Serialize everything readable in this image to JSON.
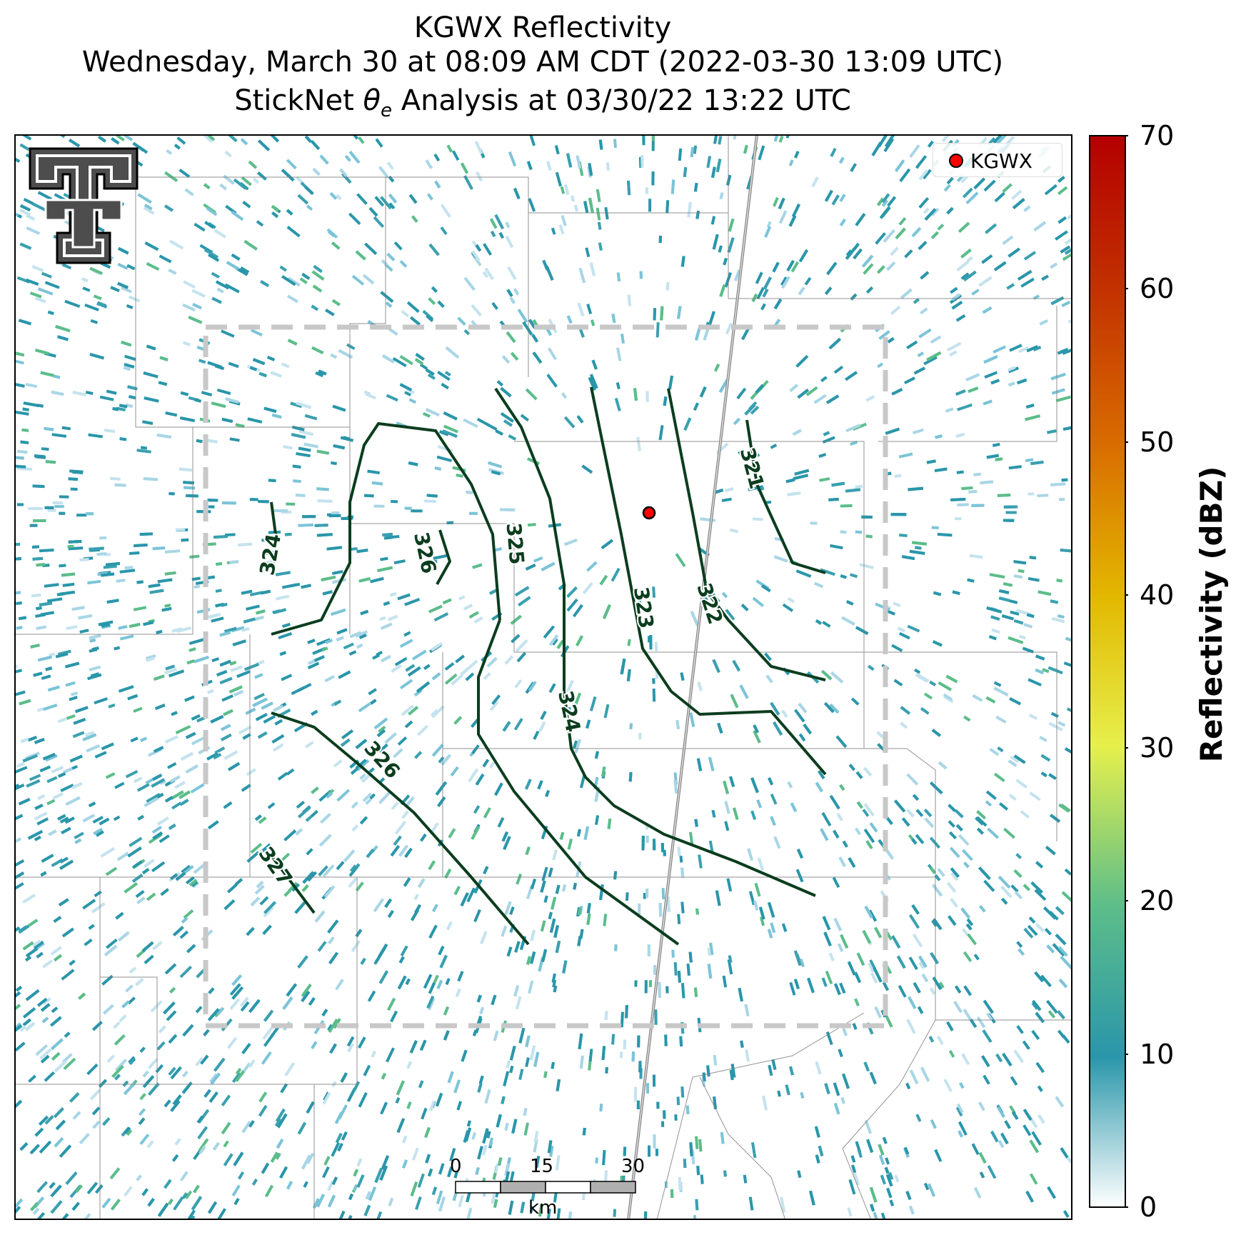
{
  "title": {
    "line1": "KGWX Reflectivity",
    "line2": "Wednesday, March 30 at 08:09 AM CDT (2022-03-30 13:09 UTC)",
    "line3_prefix": "StickNet ",
    "line3_symbol": "θ",
    "line3_subscript": "e",
    "line3_suffix": " Analysis at 03/30/22 13:22 UTC"
  },
  "legend": {
    "label": "KGWX",
    "marker_color": "#ff0000"
  },
  "colorbar": {
    "label": "Reflectivity (dBZ)",
    "ticks": [
      "70",
      "60",
      "50",
      "40",
      "30",
      "20",
      "10",
      "0"
    ],
    "range": [
      0,
      70
    ],
    "colors": [
      "#ffffff",
      "#2a96aa",
      "#5cbd8a",
      "#e6f04c",
      "#e2b800",
      "#d96d00",
      "#b40000"
    ]
  },
  "contours": [
    {
      "label": "321"
    },
    {
      "label": "322"
    },
    {
      "label": "323"
    },
    {
      "label": "324"
    },
    {
      "label": "324"
    },
    {
      "label": "325"
    },
    {
      "label": "326"
    },
    {
      "label": "326"
    },
    {
      "label": "327"
    }
  ],
  "contour_color": "#0b3d1e",
  "scalebar": {
    "ticks": [
      "0",
      "15",
      "30"
    ],
    "unit": "km"
  },
  "logo": {
    "name": "texas-tech-logo"
  },
  "colors": {
    "reflectivity_base": "#2a96aa",
    "dashed_box": "#c8c8c8",
    "radar_dot": "#ff0000"
  }
}
